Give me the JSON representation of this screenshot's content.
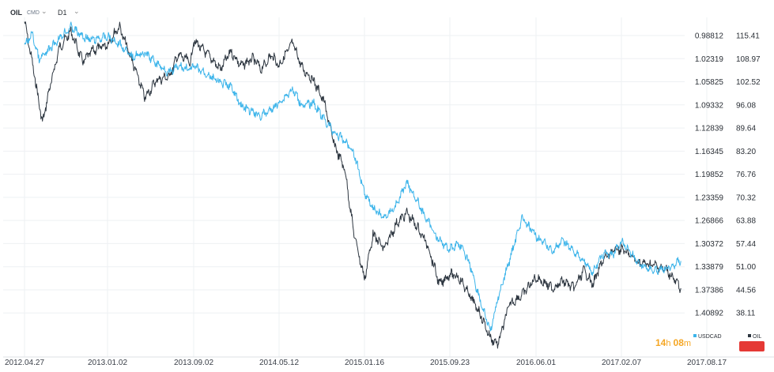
{
  "header": {
    "symbol": "OIL",
    "instrument_type": "CMD",
    "timeframe": "D1"
  },
  "timer": {
    "hours": "14",
    "h_unit": "h",
    "minutes": "08",
    "m_unit": "m"
  },
  "colors": {
    "oil": "#2d3640",
    "usdcad": "#3cb4ea",
    "timer": "#f5a623",
    "red_button": "#e53935"
  },
  "chart_data": {
    "type": "line",
    "title": "",
    "xlabel": "",
    "ylabel": "",
    "x_ticks": [
      "2012.04.27",
      "2013.01.02",
      "2013.09.02",
      "2014.05.12",
      "2015.01.16",
      "2015.09.23",
      "2016.06.01",
      "2017.02.07",
      "2017.08.17"
    ],
    "y_left_ticks": [
      "0.98812",
      "1.02319",
      "1.05825",
      "1.09332",
      "1.12839",
      "1.16345",
      "1.19852",
      "1.23359",
      "1.26866",
      "1.30372",
      "1.33879",
      "1.37386",
      "1.40892"
    ],
    "y_left_inverted": true,
    "y_right_ticks": [
      "115.41",
      "108.97",
      "102.52",
      "96.08",
      "89.64",
      "83.20",
      "76.76",
      "70.32",
      "63.88",
      "57.44",
      "51.00",
      "44.56",
      "38.11"
    ],
    "ylim_right": [
      30.0,
      120.0
    ],
    "ylim_left": [
      0.9657,
      1.4549
    ],
    "xlim": [
      "2012.04.27",
      "2017.08.17"
    ],
    "legend": [
      "USDCAD",
      "OIL"
    ],
    "grid": true,
    "series": [
      {
        "name": "OIL",
        "axis": "right",
        "x": [
          "2012.04.27",
          "2012.05.20",
          "2012.06.20",
          "2012.07.10",
          "2012.08.10",
          "2012.09.14",
          "2012.10.20",
          "2012.11.15",
          "2013.01.02",
          "2013.02.04",
          "2013.03.10",
          "2013.04.18",
          "2013.05.20",
          "2013.06.25",
          "2013.07.20",
          "2013.08.25",
          "2013.09.02",
          "2013.10.15",
          "2013.11.20",
          "2013.12.20",
          "2014.01.20",
          "2014.02.25",
          "2014.03.20",
          "2014.04.20",
          "2014.05.12",
          "2014.06.20",
          "2014.07.20",
          "2014.08.20",
          "2014.09.20",
          "2014.10.20",
          "2014.11.20",
          "2014.12.15",
          "2015.01.16",
          "2015.02.10",
          "2015.03.15",
          "2015.04.20",
          "2015.05.20",
          "2015.06.20",
          "2015.07.20",
          "2015.08.24",
          "2015.09.23",
          "2015.10.20",
          "2015.11.20",
          "2015.12.20",
          "2016.01.20",
          "2016.02.11",
          "2016.03.15",
          "2016.04.20",
          "2016.06.01",
          "2016.07.20",
          "2016.08.20",
          "2016.09.20",
          "2016.10.20",
          "2016.11.15",
          "2016.12.15",
          "2017.01.15",
          "2017.02.07",
          "2017.03.20",
          "2017.04.20",
          "2017.05.20",
          "2017.06.20"
        ],
        "values": [
          119.5,
          108.0,
          91.0,
          100.0,
          112.0,
          116.5,
          108.0,
          111.0,
          113.0,
          118.0,
          109.0,
          98.0,
          103.0,
          104.0,
          110.0,
          108.0,
          114.0,
          110.0,
          106.0,
          111.0,
          107.0,
          109.0,
          106.0,
          110.0,
          107.0,
          113.5,
          106.0,
          103.0,
          97.0,
          85.0,
          78.0,
          61.0,
          47.5,
          60.0,
          56.0,
          63.0,
          66.0,
          62.0,
          57.0,
          46.0,
          49.0,
          48.0,
          43.0,
          38.0,
          31.0,
          29.5,
          40.5,
          43.0,
          48.0,
          45.0,
          47.0,
          45.0,
          50.0,
          46.0,
          53.0,
          55.5,
          56.0,
          52.0,
          51.5,
          50.0,
          45.0
        ]
      },
      {
        "name": "USDCAD",
        "axis": "left",
        "x": [
          "2012.04.27",
          "2012.05.20",
          "2012.06.10",
          "2012.07.10",
          "2012.08.10",
          "2012.09.14",
          "2012.10.20",
          "2012.11.15",
          "2013.01.02",
          "2013.02.04",
          "2013.03.10",
          "2013.04.18",
          "2013.05.20",
          "2013.06.25",
          "2013.07.20",
          "2013.08.25",
          "2013.09.02",
          "2013.10.15",
          "2013.11.20",
          "2013.12.20",
          "2014.01.20",
          "2014.02.25",
          "2014.03.20",
          "2014.04.20",
          "2014.05.12",
          "2014.06.20",
          "2014.07.20",
          "2014.08.20",
          "2014.09.20",
          "2014.10.20",
          "2014.11.20",
          "2014.12.15",
          "2015.01.16",
          "2015.02.10",
          "2015.03.15",
          "2015.04.20",
          "2015.05.20",
          "2015.06.20",
          "2015.07.20",
          "2015.08.24",
          "2015.09.23",
          "2015.10.20",
          "2015.11.20",
          "2015.12.20",
          "2016.01.20",
          "2016.02.11",
          "2016.03.15",
          "2016.04.20",
          "2016.06.01",
          "2016.07.20",
          "2016.08.20",
          "2016.09.20",
          "2016.10.20",
          "2016.11.15",
          "2016.12.15",
          "2017.01.15",
          "2017.02.07",
          "2017.03.20",
          "2017.04.20",
          "2017.05.20",
          "2017.06.20"
        ],
        "values": [
          1.005,
          0.985,
          1.025,
          1.01,
          0.992,
          0.975,
          0.99,
          0.995,
          0.99,
          1.0,
          1.02,
          1.015,
          1.03,
          1.045,
          1.035,
          1.04,
          1.035,
          1.048,
          1.06,
          1.065,
          1.095,
          1.105,
          1.11,
          1.1,
          1.09,
          1.07,
          1.095,
          1.09,
          1.115,
          1.135,
          1.148,
          1.165,
          1.225,
          1.25,
          1.265,
          1.245,
          1.21,
          1.24,
          1.27,
          1.3,
          1.312,
          1.303,
          1.334,
          1.389,
          1.437,
          1.385,
          1.33,
          1.265,
          1.292,
          1.315,
          1.3,
          1.315,
          1.33,
          1.348,
          1.32,
          1.32,
          1.3,
          1.335,
          1.345,
          1.34,
          1.33
        ]
      }
    ]
  }
}
